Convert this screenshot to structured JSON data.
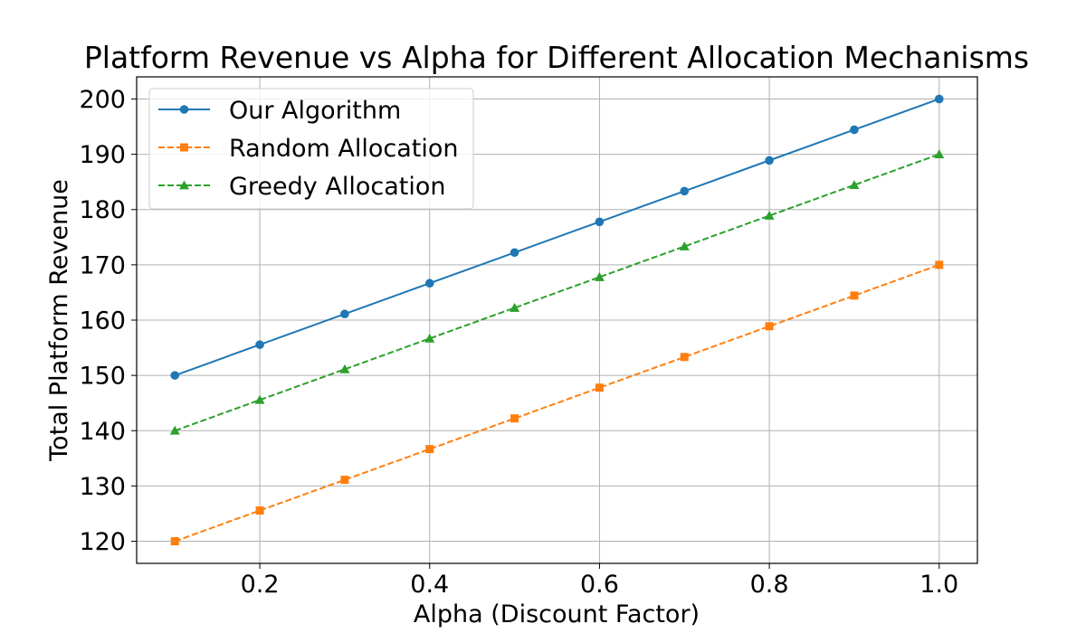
{
  "chart_data": {
    "type": "line",
    "title": "Platform Revenue vs Alpha for Different Allocation Mechanisms",
    "xlabel": "Alpha (Discount Factor)",
    "ylabel": "Total Platform Revenue",
    "x": [
      0.1,
      0.2,
      0.3,
      0.4,
      0.5,
      0.6,
      0.7,
      0.8,
      0.9,
      1.0
    ],
    "xlim": [
      0.055,
      1.045
    ],
    "ylim": [
      116,
      204
    ],
    "xticks": [
      0.2,
      0.4,
      0.6,
      0.8,
      1.0
    ],
    "xtick_labels": [
      "0.2",
      "0.4",
      "0.6",
      "0.8",
      "1.0"
    ],
    "yticks": [
      120,
      130,
      140,
      150,
      160,
      170,
      180,
      190,
      200
    ],
    "ytick_labels": [
      "120",
      "130",
      "140",
      "150",
      "160",
      "170",
      "180",
      "190",
      "200"
    ],
    "grid": true,
    "legend_position": "top-left",
    "series": [
      {
        "name": "Our Algorithm",
        "color": "#1f77b4",
        "linestyle": "solid",
        "marker": "circle",
        "values": [
          150,
          155.56,
          161.11,
          166.67,
          172.22,
          177.78,
          183.33,
          188.89,
          194.44,
          200
        ]
      },
      {
        "name": "Random Allocation",
        "color": "#ff7f0e",
        "linestyle": "dashed",
        "marker": "square",
        "values": [
          120,
          125.56,
          131.11,
          136.67,
          142.22,
          147.78,
          153.33,
          158.89,
          164.44,
          170
        ]
      },
      {
        "name": "Greedy Allocation",
        "color": "#2ca02c",
        "linestyle": "dashed",
        "marker": "triangle",
        "values": [
          140,
          145.56,
          151.11,
          156.67,
          162.22,
          167.78,
          173.33,
          178.89,
          184.44,
          190
        ]
      }
    ]
  }
}
